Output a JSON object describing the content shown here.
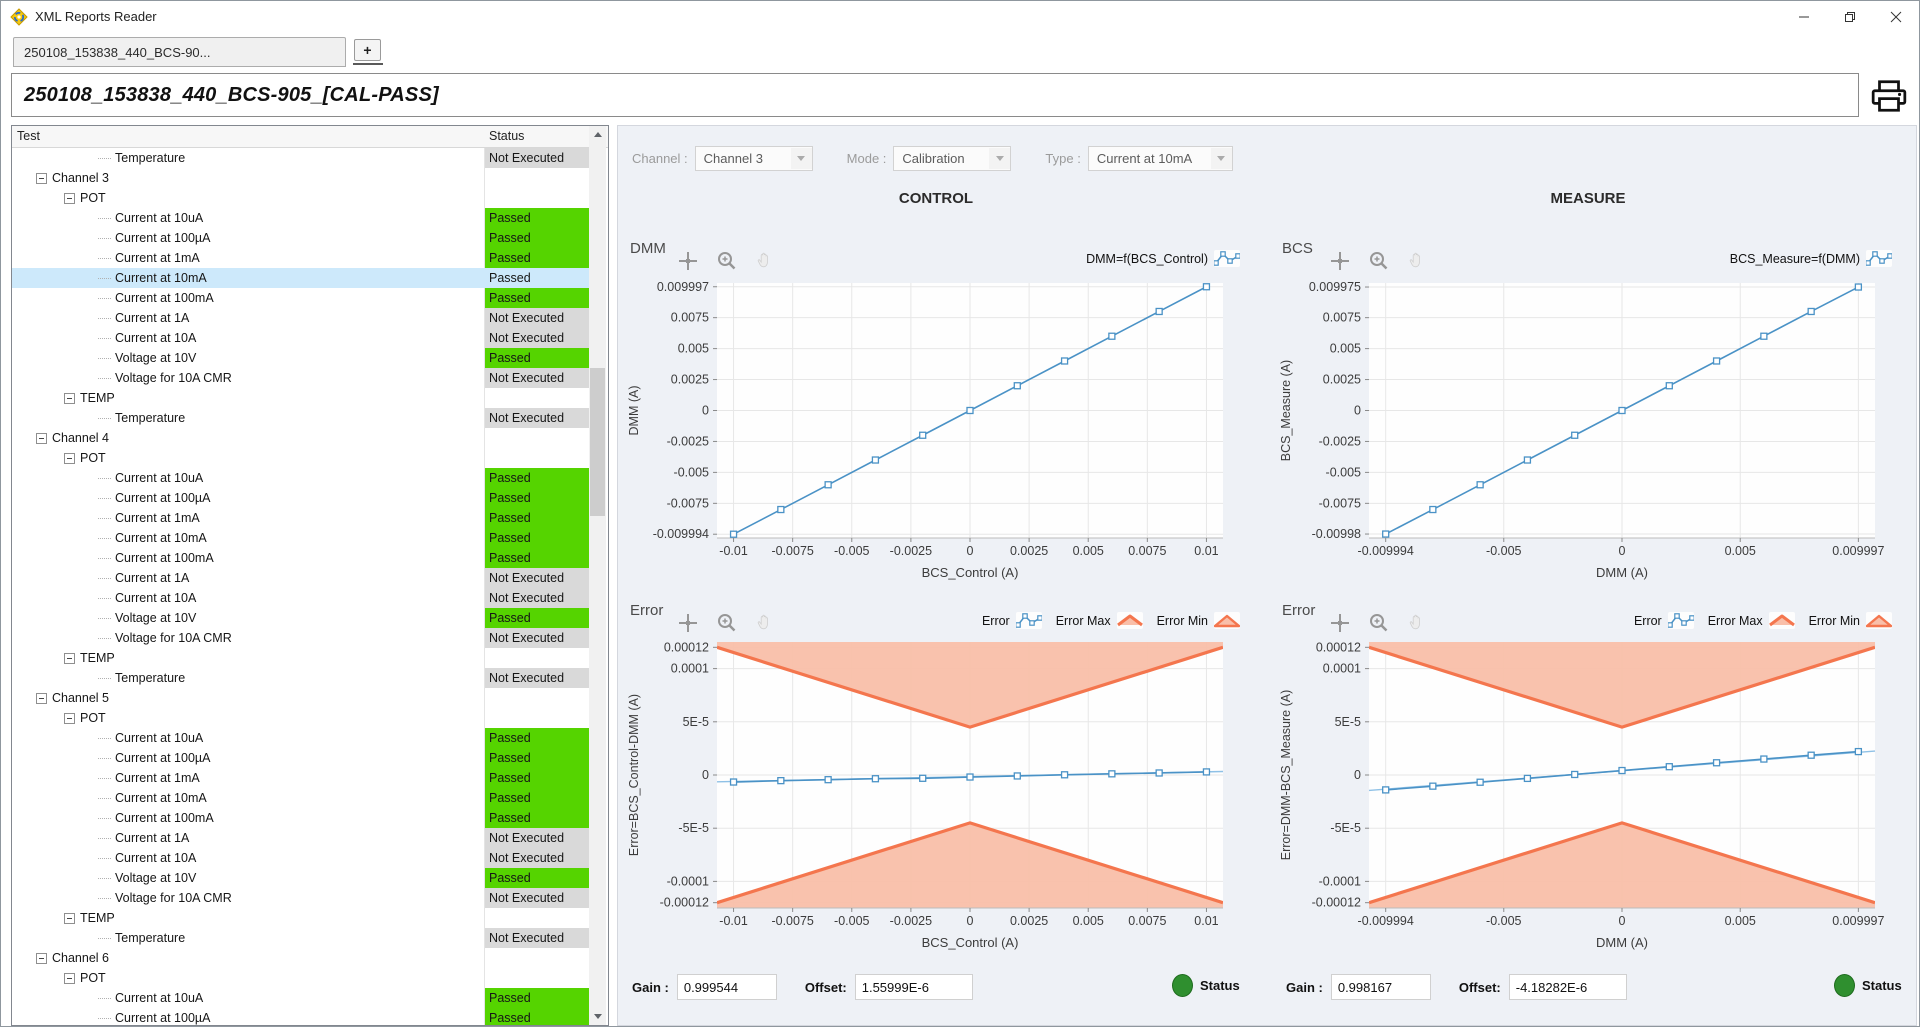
{
  "window": {
    "title": "XML Reports Reader"
  },
  "tabs": {
    "active_label": "250108_153838_440_BCS-90...",
    "add_label": "+"
  },
  "report_header": {
    "title": "250108_153838_440_BCS-905_[CAL-PASS]"
  },
  "tree": {
    "columns": [
      "Test",
      "Status"
    ],
    "rows": [
      {
        "label": "Temperature",
        "level": 3,
        "status": "Not Executed"
      },
      {
        "label": "Channel 3",
        "level": 1,
        "expander": true,
        "status": ""
      },
      {
        "label": "POT",
        "level": 2,
        "expander": true,
        "status": ""
      },
      {
        "label": "Current at 10uA",
        "level": 3,
        "status": "Passed"
      },
      {
        "label": "Current at 100µA",
        "level": 3,
        "status": "Passed"
      },
      {
        "label": "Current at 1mA",
        "level": 3,
        "status": "Passed"
      },
      {
        "label": "Current at 10mA",
        "level": 3,
        "status": "Passed",
        "selected": true
      },
      {
        "label": "Current at 100mA",
        "level": 3,
        "status": "Passed"
      },
      {
        "label": "Current at 1A",
        "level": 3,
        "status": "Not Executed"
      },
      {
        "label": "Current at 10A",
        "level": 3,
        "status": "Not Executed"
      },
      {
        "label": "Voltage at 10V",
        "level": 3,
        "status": "Passed"
      },
      {
        "label": "Voltage for 10A CMR",
        "level": 3,
        "status": "Not Executed"
      },
      {
        "label": "TEMP",
        "level": 2,
        "expander": true,
        "status": ""
      },
      {
        "label": "Temperature",
        "level": 3,
        "status": "Not Executed"
      },
      {
        "label": "Channel 4",
        "level": 1,
        "expander": true,
        "status": ""
      },
      {
        "label": "POT",
        "level": 2,
        "expander": true,
        "status": ""
      },
      {
        "label": "Current at 10uA",
        "level": 3,
        "status": "Passed"
      },
      {
        "label": "Current at 100µA",
        "level": 3,
        "status": "Passed"
      },
      {
        "label": "Current at 1mA",
        "level": 3,
        "status": "Passed"
      },
      {
        "label": "Current at 10mA",
        "level": 3,
        "status": "Passed"
      },
      {
        "label": "Current at 100mA",
        "level": 3,
        "status": "Passed"
      },
      {
        "label": "Current at 1A",
        "level": 3,
        "status": "Not Executed"
      },
      {
        "label": "Current at 10A",
        "level": 3,
        "status": "Not Executed"
      },
      {
        "label": "Voltage at 10V",
        "level": 3,
        "status": "Passed"
      },
      {
        "label": "Voltage for 10A CMR",
        "level": 3,
        "status": "Not Executed"
      },
      {
        "label": "TEMP",
        "level": 2,
        "expander": true,
        "status": ""
      },
      {
        "label": "Temperature",
        "level": 3,
        "status": "Not Executed"
      },
      {
        "label": "Channel 5",
        "level": 1,
        "expander": true,
        "status": ""
      },
      {
        "label": "POT",
        "level": 2,
        "expander": true,
        "status": ""
      },
      {
        "label": "Current at 10uA",
        "level": 3,
        "status": "Passed"
      },
      {
        "label": "Current at 100µA",
        "level": 3,
        "status": "Passed"
      },
      {
        "label": "Current at 1mA",
        "level": 3,
        "status": "Passed"
      },
      {
        "label": "Current at 10mA",
        "level": 3,
        "status": "Passed"
      },
      {
        "label": "Current at 100mA",
        "level": 3,
        "status": "Passed"
      },
      {
        "label": "Current at 1A",
        "level": 3,
        "status": "Not Executed"
      },
      {
        "label": "Current at 10A",
        "level": 3,
        "status": "Not Executed"
      },
      {
        "label": "Voltage at 10V",
        "level": 3,
        "status": "Passed"
      },
      {
        "label": "Voltage for 10A CMR",
        "level": 3,
        "status": "Not Executed"
      },
      {
        "label": "TEMP",
        "level": 2,
        "expander": true,
        "status": ""
      },
      {
        "label": "Temperature",
        "level": 3,
        "status": "Not Executed"
      },
      {
        "label": "Channel 6",
        "level": 1,
        "expander": true,
        "status": ""
      },
      {
        "label": "POT",
        "level": 2,
        "expander": true,
        "status": ""
      },
      {
        "label": "Current at 10uA",
        "level": 3,
        "status": "Passed"
      },
      {
        "label": "Current at 100µA",
        "level": 3,
        "status": "Passed"
      }
    ]
  },
  "toolbar": {
    "channel_label": "Channel :",
    "channel_value": "Channel 3",
    "mode_label": "Mode :",
    "mode_value": "Calibration",
    "type_label": "Type :",
    "type_value": "Current at 10mA"
  },
  "sections": {
    "control_title": "CONTROL",
    "measure_title": "MEASURE"
  },
  "chart_data": [
    {
      "id": "control-dmm",
      "type": "line",
      "corner_label": "DMM",
      "legend": [
        {
          "label": "DMM=f(BCS_Control)",
          "icon": "line-plot"
        }
      ],
      "xlabel": "BCS_Control (A)",
      "ylabel": "DMM (A)",
      "xlim": [
        -0.0107,
        0.0107
      ],
      "ylim": [
        -0.0103,
        0.0103
      ],
      "xticks": [
        {
          "v": -0.01,
          "t": "-0.01"
        },
        {
          "v": -0.0075,
          "t": "-0.0075"
        },
        {
          "v": -0.005,
          "t": "-0.005"
        },
        {
          "v": -0.0025,
          "t": "-0.0025"
        },
        {
          "v": 0,
          "t": "0"
        },
        {
          "v": 0.0025,
          "t": "0.0025"
        },
        {
          "v": 0.005,
          "t": "0.005"
        },
        {
          "v": 0.0075,
          "t": "0.0075"
        },
        {
          "v": 0.01,
          "t": "0.01"
        }
      ],
      "yticks": [
        {
          "v": 0.009997,
          "t": "0.009997"
        },
        {
          "v": 0.0075,
          "t": "0.0075"
        },
        {
          "v": 0.005,
          "t": "0.005"
        },
        {
          "v": 0.0025,
          "t": "0.0025"
        },
        {
          "v": 0,
          "t": "0"
        },
        {
          "v": -0.0025,
          "t": "-0.0025"
        },
        {
          "v": -0.005,
          "t": "-0.005"
        },
        {
          "v": -0.0075,
          "t": "-0.0075"
        },
        {
          "v": -0.009994,
          "t": "-0.009994"
        }
      ],
      "series": [
        {
          "name": "DMM",
          "x": [
            -0.01,
            -0.008,
            -0.006,
            -0.004,
            -0.002,
            0,
            0.002,
            0.004,
            0.006,
            0.008,
            0.01
          ],
          "y": [
            -0.009994,
            -0.008,
            -0.006,
            -0.004,
            -0.002,
            0,
            0.002,
            0.004,
            0.006,
            0.008,
            0.009997
          ]
        }
      ]
    },
    {
      "id": "measure-bcs",
      "type": "line",
      "corner_label": "BCS",
      "legend": [
        {
          "label": "BCS_Measure=f(DMM)",
          "icon": "line-plot"
        }
      ],
      "xlabel": "DMM (A)",
      "ylabel": "BCS_Measure (A)",
      "xlim": [
        -0.0107,
        0.0107
      ],
      "ylim": [
        -0.0103,
        0.0103
      ],
      "xticks": [
        {
          "v": -0.009994,
          "t": "-0.009994"
        },
        {
          "v": -0.005,
          "t": "-0.005"
        },
        {
          "v": 0,
          "t": "0"
        },
        {
          "v": 0.005,
          "t": "0.005"
        },
        {
          "v": 0.009997,
          "t": "0.009997"
        }
      ],
      "yticks": [
        {
          "v": 0.009975,
          "t": "0.009975"
        },
        {
          "v": 0.0075,
          "t": "0.0075"
        },
        {
          "v": 0.005,
          "t": "0.005"
        },
        {
          "v": 0.0025,
          "t": "0.0025"
        },
        {
          "v": 0,
          "t": "0"
        },
        {
          "v": -0.0025,
          "t": "-0.0025"
        },
        {
          "v": -0.005,
          "t": "-0.005"
        },
        {
          "v": -0.0075,
          "t": "-0.0075"
        },
        {
          "v": -0.00998,
          "t": "-0.00998"
        }
      ],
      "series": [
        {
          "name": "BCS_Measure",
          "x": [
            -0.009994,
            -0.008,
            -0.006,
            -0.004,
            -0.002,
            0,
            0.002,
            0.004,
            0.006,
            0.008,
            0.009997
          ],
          "y": [
            -0.00998,
            -0.008,
            -0.006,
            -0.004,
            -0.002,
            0,
            0.002,
            0.004,
            0.006,
            0.008,
            0.009975
          ]
        }
      ]
    },
    {
      "id": "control-error",
      "type": "line",
      "corner_label": "Error",
      "legend": [
        {
          "label": "Error",
          "icon": "line-plot"
        },
        {
          "label": "Error Max",
          "icon": "limit-max"
        },
        {
          "label": "Error Min",
          "icon": "limit-min"
        }
      ],
      "xlabel": "BCS_Control (A)",
      "ylabel": "Error=BCS_Control-DMM (A)",
      "xlim": [
        -0.0107,
        0.0107
      ],
      "ylim": [
        -0.000125,
        0.000125
      ],
      "xticks": [
        {
          "v": -0.01,
          "t": "-0.01"
        },
        {
          "v": -0.0075,
          "t": "-0.0075"
        },
        {
          "v": -0.005,
          "t": "-0.005"
        },
        {
          "v": -0.0025,
          "t": "-0.0025"
        },
        {
          "v": 0,
          "t": "0"
        },
        {
          "v": 0.0025,
          "t": "0.0025"
        },
        {
          "v": 0.005,
          "t": "0.005"
        },
        {
          "v": 0.0075,
          "t": "0.0075"
        },
        {
          "v": 0.01,
          "t": "0.01"
        }
      ],
      "yticks": [
        {
          "v": 0.00012,
          "t": "0.00012"
        },
        {
          "v": 0.0001,
          "t": "0.0001"
        },
        {
          "v": 5e-05,
          "t": "5E-5"
        },
        {
          "v": 0,
          "t": "0"
        },
        {
          "v": -5e-05,
          "t": "-5E-5"
        },
        {
          "v": -0.0001,
          "t": "-0.0001"
        },
        {
          "v": -0.00012,
          "t": "-0.00012"
        }
      ],
      "limit_edge": 0.00012,
      "limit_center": 4.5e-05,
      "fit": [
        [
          -0.0107,
          -6.4e-06
        ],
        [
          0.0107,
          3.3e-06
        ]
      ],
      "series": [
        {
          "name": "Error",
          "x": [
            -0.01,
            -0.008,
            -0.006,
            -0.004,
            -0.002,
            0,
            0.002,
            0.004,
            0.006,
            0.008,
            0.01
          ],
          "y": [
            -6.6e-06,
            -5.3e-06,
            -4.4e-06,
            -3.5e-06,
            -3.1e-06,
            -1.9e-06,
            -9e-07,
            2e-07,
            1.1e-06,
            1.9e-06,
            2.9e-06
          ]
        }
      ]
    },
    {
      "id": "measure-error",
      "type": "line",
      "corner_label": "Error",
      "legend": [
        {
          "label": "Error",
          "icon": "line-plot"
        },
        {
          "label": "Error Max",
          "icon": "limit-max"
        },
        {
          "label": "Error Min",
          "icon": "limit-min"
        }
      ],
      "xlabel": "DMM (A)",
      "ylabel": "Error=DMM-BCS_Measure (A)",
      "xlim": [
        -0.0107,
        0.0107
      ],
      "ylim": [
        -0.000125,
        0.000125
      ],
      "xticks": [
        {
          "v": -0.009994,
          "t": "-0.009994"
        },
        {
          "v": -0.005,
          "t": "-0.005"
        },
        {
          "v": 0,
          "t": "0"
        },
        {
          "v": 0.005,
          "t": "0.005"
        },
        {
          "v": 0.009997,
          "t": "0.009997"
        }
      ],
      "yticks": [
        {
          "v": 0.00012,
          "t": "0.00012"
        },
        {
          "v": 0.0001,
          "t": "0.0001"
        },
        {
          "v": 5e-05,
          "t": "5E-5"
        },
        {
          "v": 0,
          "t": "0"
        },
        {
          "v": -5e-05,
          "t": "-5E-5"
        },
        {
          "v": -0.0001,
          "t": "-0.0001"
        },
        {
          "v": -0.00012,
          "t": "-0.00012"
        }
      ],
      "limit_edge": 0.00012,
      "limit_center": 4.5e-05,
      "fit": [
        [
          -0.0107,
          -1.45e-05
        ],
        [
          0.0107,
          2.25e-05
        ]
      ],
      "series": [
        {
          "name": "Error",
          "x": [
            -0.009994,
            -0.008,
            -0.006,
            -0.004,
            -0.002,
            0,
            0.002,
            0.004,
            0.006,
            0.008,
            0.009997
          ],
          "y": [
            -1.4e-05,
            -1.05e-05,
            -6.8e-06,
            -3.2e-06,
            5e-07,
            4.2e-06,
            7.8e-06,
            1.15e-05,
            1.5e-05,
            1.86e-05,
            2.2e-05
          ]
        }
      ]
    }
  ],
  "footer": {
    "control": {
      "gain_label": "Gain :",
      "gain": "0.999544",
      "offset_label": "Offset:",
      "offset": "1.55999E-6",
      "status_label": "Status"
    },
    "measure": {
      "gain_label": "Gain :",
      "gain": "0.998167",
      "offset_label": "Offset:",
      "offset": "-4.18282E-6",
      "status_label": "Status"
    }
  },
  "colors": {
    "passed_green": "#55d400",
    "not_executed_gray": "#d9d9d9",
    "selected_blue": "#cde9fb",
    "series_blue": "#4a92c6",
    "fit_blue": "#8fc1e6",
    "limit_stroke": "#f4764e",
    "limit_fill": "#f9bfa9",
    "status_green": "#2f8f2f",
    "grid": "#e7e7e7"
  }
}
